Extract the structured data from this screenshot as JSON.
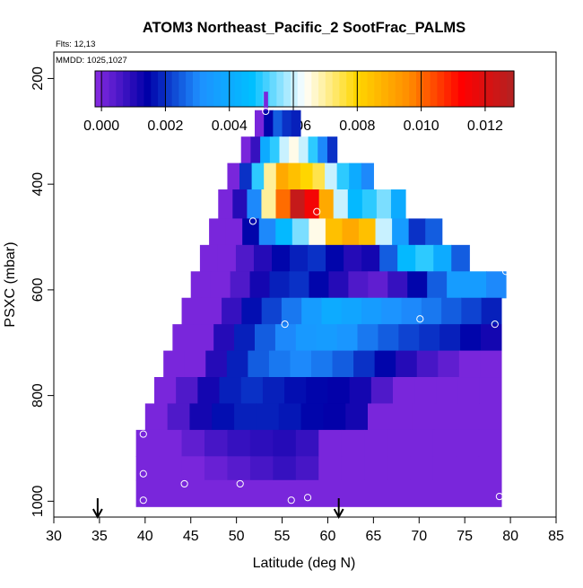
{
  "chart_data": {
    "type": "heatmap",
    "title": "ATOM3 Northeast_Pacific_2 SootFrac_PALMS",
    "annotations": [
      "Flts: 12,13",
      "MMDD: 1025,1027"
    ],
    "xlabel": "Latitude (deg N)",
    "ylabel": "PSXC (mbar)",
    "xlim": [
      30,
      85
    ],
    "ylim": [
      1030,
      150
    ],
    "y_reversed": true,
    "x_ticks": [
      "30",
      "35",
      "40",
      "45",
      "50",
      "55",
      "60",
      "65",
      "70",
      "75",
      "80",
      "85"
    ],
    "y_ticks": [
      "200",
      "400",
      "600",
      "800",
      "1000"
    ],
    "colorbar": {
      "range": [
        -0.0002,
        0.0129
      ],
      "tick_labels": [
        "0.000",
        "0.002",
        "0.004",
        "0.006",
        "0.008",
        "0.010",
        "0.012"
      ],
      "tick_values": [
        0,
        0.002,
        0.004,
        0.006,
        0.008,
        0.01,
        0.012
      ],
      "colors": [
        "#8a2be2",
        "#0000a8",
        "#1e90ff",
        "#00bfff",
        "#ffffff",
        "#ffd700",
        "#ff8c00",
        "#ff0000",
        "#b22222"
      ]
    },
    "bands": [
      {
        "p_top": 225,
        "p_bottom": 260,
        "lat_start": 53.0,
        "lat_end": 53.4,
        "values": [
          0.0
        ]
      },
      {
        "p_top": 260,
        "p_bottom": 310,
        "lat_start": 52.0,
        "lat_end": 57.0,
        "values": [
          0.0,
          0.0015,
          0.0025,
          0.002,
          0.0018
        ]
      },
      {
        "p_top": 310,
        "p_bottom": 360,
        "lat_start": 50.5,
        "lat_end": 61.0,
        "values": [
          0.0,
          0.0008,
          0.004,
          0.005,
          0.006,
          0.0065,
          0.006,
          0.005,
          0.003,
          0.002
        ]
      },
      {
        "p_top": 360,
        "p_bottom": 410,
        "lat_start": 49.0,
        "lat_end": 65.0,
        "values": [
          0.0,
          0.002,
          0.005,
          0.007,
          0.009,
          0.0085,
          0.008,
          0.0075,
          0.006,
          0.005,
          0.004,
          0.003
        ]
      },
      {
        "p_top": 410,
        "p_bottom": 465,
        "lat_start": 48.0,
        "lat_end": 68.5,
        "values": [
          0.0,
          0.001,
          0.003,
          0.007,
          0.01,
          0.0125,
          0.0115,
          0.009,
          0.006,
          0.0045,
          0.005,
          0.0055,
          0.004
        ]
      },
      {
        "p_top": 465,
        "p_bottom": 515,
        "lat_start": 47.0,
        "lat_end": 72.5,
        "values": [
          0.0,
          0.0,
          0.0015,
          0.003,
          0.0045,
          0.0055,
          0.0065,
          0.0085,
          0.009,
          0.0085,
          0.006,
          0.0035,
          0.002,
          0.0025
        ]
      },
      {
        "p_top": 515,
        "p_bottom": 565,
        "lat_start": 46.0,
        "lat_end": 75.5,
        "values": [
          0.0,
          0.0,
          0.0005,
          0.001,
          0.0015,
          0.0018,
          0.002,
          0.0015,
          0.001,
          0.0012,
          0.0025,
          0.0045,
          0.005,
          0.004,
          0.0025
        ]
      },
      {
        "p_top": 565,
        "p_bottom": 615,
        "lat_start": 45.0,
        "lat_end": 79.5,
        "values": [
          0.0,
          0.0,
          0.0005,
          0.0012,
          0.0018,
          0.002,
          0.0015,
          0.001,
          0.0005,
          0.0003,
          0.0008,
          0.0015,
          0.0025,
          0.0035,
          0.0035,
          0.003
        ]
      },
      {
        "p_top": 615,
        "p_bottom": 665,
        "lat_start": 44.0,
        "lat_end": 79.0,
        "values": [
          0.0,
          0.0,
          0.0008,
          0.0016,
          0.0022,
          0.0028,
          0.0035,
          0.004,
          0.0038,
          0.0035,
          0.0032,
          0.003,
          0.0028,
          0.0025,
          0.0022,
          0.0018
        ]
      },
      {
        "p_top": 665,
        "p_bottom": 715,
        "lat_start": 43.0,
        "lat_end": 79.0,
        "values": [
          0.0,
          0.0,
          0.001,
          0.0018,
          0.0025,
          0.003,
          0.0034,
          0.0035,
          0.0033,
          0.0028,
          0.0025,
          0.0022,
          0.002,
          0.0018,
          0.0015,
          0.0012
        ]
      },
      {
        "p_top": 715,
        "p_bottom": 765,
        "lat_start": 42.0,
        "lat_end": 79.0,
        "values": [
          0.0,
          0.0,
          0.001,
          0.0018,
          0.0025,
          0.0028,
          0.003,
          0.0028,
          0.0025,
          0.002,
          0.0015,
          0.001,
          0.0006,
          0.0003,
          0.0,
          0.0
        ]
      },
      {
        "p_top": 765,
        "p_bottom": 815,
        "lat_start": 41.0,
        "lat_end": 79.0,
        "values": [
          0.0,
          0.0005,
          0.0012,
          0.0018,
          0.002,
          0.0018,
          0.0016,
          0.0015,
          0.0014,
          0.0012,
          0.0005,
          0.0,
          0.0,
          0.0,
          0.0,
          0.0
        ]
      },
      {
        "p_top": 815,
        "p_bottom": 865,
        "lat_start": 40.0,
        "lat_end": 79.0,
        "values": [
          0.0,
          0.0005,
          0.0012,
          0.0016,
          0.0018,
          0.0018,
          0.0017,
          0.0015,
          0.0014,
          0.0012,
          0.0,
          0.0,
          0.0,
          0.0,
          0.0,
          0.0
        ]
      },
      {
        "p_top": 865,
        "p_bottom": 915,
        "lat_start": 39.0,
        "lat_end": 79.0,
        "values": [
          0.0,
          0.0,
          0.0003,
          0.0006,
          0.0008,
          0.0009,
          0.001,
          0.0008,
          0.0,
          0.0,
          0.0,
          0.0,
          0.0,
          0.0,
          0.0,
          0.0
        ]
      },
      {
        "p_top": 915,
        "p_bottom": 960,
        "lat_start": 39.0,
        "lat_end": 79.0,
        "values": [
          0.0,
          0.0,
          0.0,
          0.0002,
          0.0004,
          0.0006,
          0.0008,
          0.0006,
          0.0,
          0.0,
          0.0,
          0.0,
          0.0,
          0.0,
          0.0,
          0.0
        ]
      },
      {
        "p_top": 960,
        "p_bottom": 1010,
        "lat_start": 39.0,
        "lat_end": 79.0,
        "values": [
          0.0
        ]
      }
    ],
    "sample_points": [
      {
        "lat": 53.2,
        "p": 262
      },
      {
        "lat": 51.8,
        "p": 470
      },
      {
        "lat": 58.8,
        "p": 452
      },
      {
        "lat": 79.5,
        "p": 565
      },
      {
        "lat": 55.3,
        "p": 665
      },
      {
        "lat": 70.1,
        "p": 655
      },
      {
        "lat": 78.3,
        "p": 665
      },
      {
        "lat": 39.8,
        "p": 873
      },
      {
        "lat": 39.8,
        "p": 948
      },
      {
        "lat": 39.8,
        "p": 998
      },
      {
        "lat": 44.3,
        "p": 967
      },
      {
        "lat": 50.4,
        "p": 967
      },
      {
        "lat": 56.0,
        "p": 998
      },
      {
        "lat": 57.8,
        "p": 993
      },
      {
        "lat": 78.8,
        "p": 991
      }
    ],
    "arrows": [
      {
        "lat": 34.8
      },
      {
        "lat": 61.2
      }
    ]
  }
}
